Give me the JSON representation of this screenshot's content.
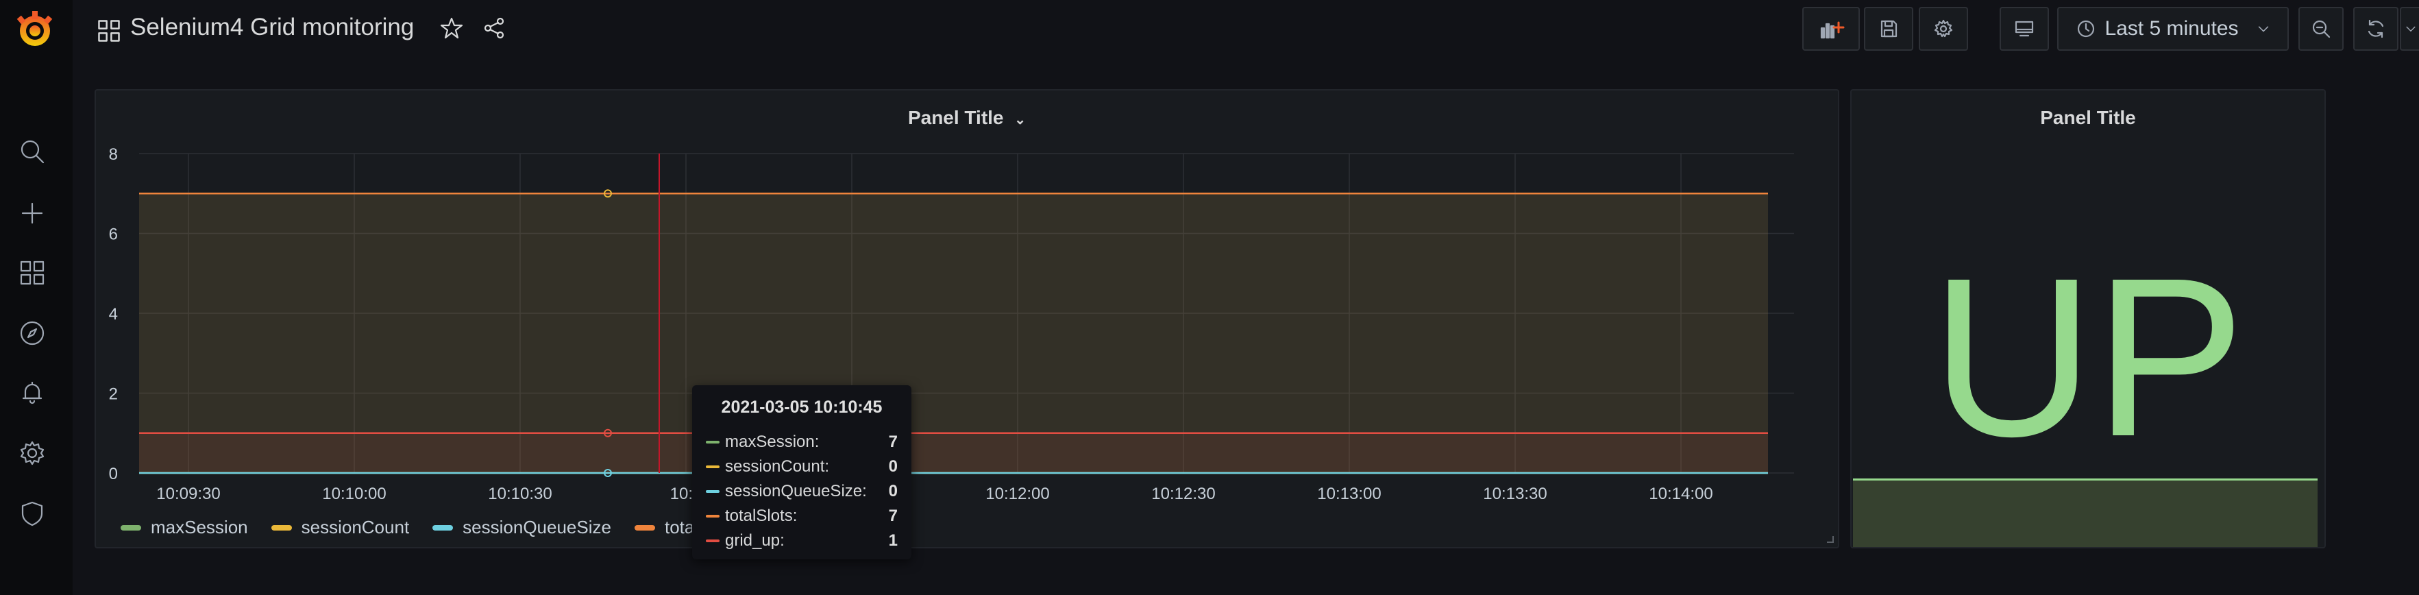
{
  "dashboard": {
    "title": "Selenium4 Grid monitoring"
  },
  "toolbar": {
    "time_range": "Last 5 minutes"
  },
  "graph_panel": {
    "title": "Panel Title",
    "tooltip": {
      "time": "2021-03-05 10:10:45",
      "rows": [
        {
          "name": "maxSession:",
          "value": "7",
          "color": "#7eb26d"
        },
        {
          "name": "sessionCount:",
          "value": "0",
          "color": "#eab839"
        },
        {
          "name": "sessionQueueSize:",
          "value": "0",
          "color": "#6ed0e0"
        },
        {
          "name": "totalSlots:",
          "value": "7",
          "color": "#ef843c"
        },
        {
          "name": "grid_up:",
          "value": "1",
          "color": "#e24d42"
        }
      ]
    }
  },
  "chart_data": {
    "type": "line",
    "x": [
      "10:09:30",
      "10:10:00",
      "10:10:30",
      "10:11:00",
      "10:11:30",
      "10:12:00",
      "10:12:30",
      "10:13:00",
      "10:13:30",
      "10:14:00"
    ],
    "ylim": [
      0,
      8
    ],
    "yticks": [
      "0",
      "2",
      "4",
      "6",
      "8"
    ],
    "xticks_visible": [
      "10:09:30",
      "10:10:00",
      "10:10:30",
      "10:1",
      "",
      "10:12:00",
      "10:12:30",
      "10:13:00",
      "10:13:30",
      "10:14:00"
    ],
    "series": [
      {
        "name": "maxSession",
        "color": "#7eb26d",
        "values": [
          7,
          7,
          7,
          7,
          7,
          7,
          7,
          7,
          7,
          7
        ]
      },
      {
        "name": "sessionCount",
        "color": "#eab839",
        "values": [
          0,
          0,
          0,
          0,
          0,
          0,
          0,
          0,
          0,
          0
        ]
      },
      {
        "name": "sessionQueueSize",
        "color": "#6ed0e0",
        "values": [
          0,
          0,
          0,
          0,
          0,
          0,
          0,
          0,
          0,
          0
        ]
      },
      {
        "name": "totalSlots",
        "color": "#ef843c",
        "values": [
          7,
          7,
          7,
          7,
          7,
          7,
          7,
          7,
          7,
          7
        ]
      },
      {
        "name": "grid_up",
        "color": "#e24d42",
        "values": [
          1,
          1,
          1,
          1,
          1,
          1,
          1,
          1,
          1,
          1
        ]
      }
    ],
    "legend_placement": "bottom",
    "grid": true
  },
  "stat_panel": {
    "title": "Panel Title",
    "value": "UP",
    "color": "#96d98d"
  }
}
